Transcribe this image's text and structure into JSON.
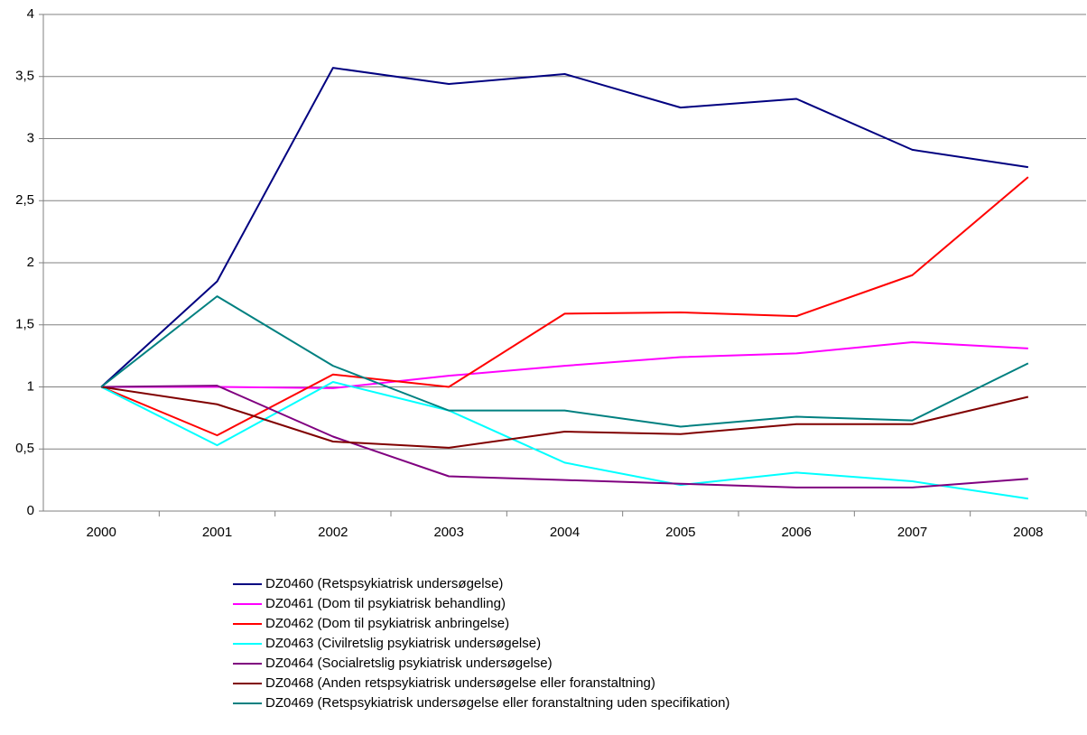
{
  "chart_data": {
    "type": "line",
    "categories": [
      "2000",
      "2001",
      "2002",
      "2003",
      "2004",
      "2005",
      "2006",
      "2007",
      "2008"
    ],
    "series": [
      {
        "name": "DZ0460 (Retspsykiatrisk undersøgelse)",
        "color": "#000080",
        "values": [
          1,
          1.85,
          3.57,
          3.44,
          3.52,
          3.25,
          3.32,
          2.91,
          2.77
        ]
      },
      {
        "name": "DZ0461 (Dom til psykiatrisk behandling)",
        "color": "#ff00ff",
        "values": [
          1,
          1.0,
          0.99,
          1.09,
          1.17,
          1.24,
          1.27,
          1.36,
          1.31
        ]
      },
      {
        "name": "DZ0462 (Dom til psykiatrisk anbringelse)",
        "color": "#ff0000",
        "values": [
          1,
          0.61,
          1.1,
          1.0,
          1.59,
          1.6,
          1.57,
          1.9,
          2.69
        ]
      },
      {
        "name": "DZ0463 (Civilretslig psykiatrisk undersøgelse)",
        "color": "#00ffff",
        "values": [
          1,
          0.53,
          1.04,
          0.81,
          0.39,
          0.21,
          0.31,
          0.24,
          0.1
        ]
      },
      {
        "name": "DZ0464 (Socialretslig psykiatrisk undersøgelse)",
        "color": "#800080",
        "values": [
          1,
          1.01,
          0.6,
          0.28,
          0.25,
          0.22,
          0.19,
          0.19,
          0.26
        ]
      },
      {
        "name": "DZ0468 (Anden retspsykiatrisk undersøgelse eller foranstaltning)",
        "color": "#800000",
        "values": [
          1,
          0.86,
          0.56,
          0.51,
          0.64,
          0.62,
          0.7,
          0.7,
          0.92
        ]
      },
      {
        "name": "DZ0469 (Retspsykiatrisk undersøgelse eller foranstaltning uden specifikation)",
        "color": "#008080",
        "values": [
          1,
          1.73,
          1.17,
          0.81,
          0.81,
          0.68,
          0.76,
          0.73,
          1.19
        ]
      }
    ],
    "ylim": [
      0,
      4
    ],
    "yticks": [
      0,
      {
        "value": 0.5,
        "label": "0,5"
      },
      1,
      {
        "value": 1.5,
        "label": "1,5"
      },
      2,
      {
        "value": 2.5,
        "label": "2,5"
      },
      3,
      {
        "value": 3.5,
        "label": "3,5"
      },
      4
    ],
    "grid": true
  }
}
